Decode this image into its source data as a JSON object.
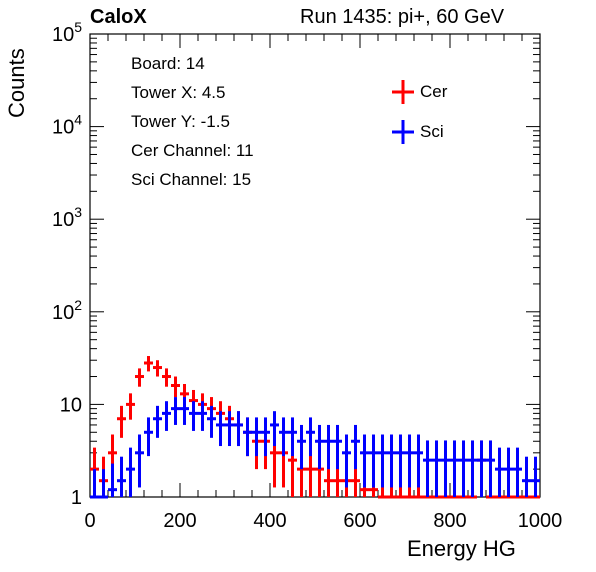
{
  "header": {
    "left_title": "CaloX",
    "right_title": "Run 1435: pi+, 60 GeV"
  },
  "info_box": {
    "lines": [
      "Board: 14",
      "Tower X: 4.5",
      "Tower Y: -1.5",
      "Cer Channel: 11",
      "Sci Channel: 15"
    ]
  },
  "colors": {
    "cer": "#ff0000",
    "sci": "#0000ff"
  },
  "chart_data": {
    "type": "histogram",
    "xlabel": "Energy HG",
    "ylabel": "Counts",
    "xlim": [
      0,
      1000
    ],
    "ylim": [
      1,
      100000
    ],
    "yscale": "log",
    "x_ticks": [
      0,
      200,
      400,
      600,
      800,
      1000
    ],
    "y_ticks": [
      1,
      10,
      100,
      1000,
      10000,
      100000
    ],
    "legend_position": "top-right",
    "bin_width": 20,
    "series": [
      {
        "name": "Cer",
        "x": [
          10,
          30,
          50,
          70,
          90,
          110,
          130,
          150,
          170,
          190,
          210,
          230,
          250,
          270,
          290,
          310,
          330,
          350,
          370,
          390,
          410,
          430,
          450,
          470,
          490,
          510,
          530,
          550,
          570,
          590,
          610,
          630,
          650,
          670,
          690,
          710,
          730,
          750,
          770,
          790,
          810,
          830,
          850,
          870,
          890,
          910,
          930,
          950,
          970,
          990
        ],
        "values": [
          2,
          1.5,
          3,
          7,
          10,
          20,
          28,
          25,
          20,
          16,
          13,
          11,
          10,
          9,
          8,
          7,
          6,
          5,
          4,
          4,
          3,
          3,
          2.5,
          2,
          2,
          2,
          1.5,
          1.5,
          1.5,
          1.5,
          1.2,
          1.2,
          1,
          1,
          1,
          1,
          1,
          1,
          1,
          1,
          1,
          1,
          1,
          2.5,
          1,
          1,
          1,
          1,
          1,
          1
        ]
      },
      {
        "name": "Sci",
        "x": [
          10,
          30,
          50,
          70,
          90,
          110,
          130,
          150,
          170,
          190,
          210,
          230,
          250,
          270,
          290,
          310,
          330,
          350,
          370,
          390,
          410,
          430,
          450,
          470,
          490,
          510,
          530,
          550,
          570,
          590,
          610,
          630,
          650,
          670,
          690,
          710,
          730,
          750,
          770,
          790,
          810,
          830,
          850,
          870,
          890,
          910,
          930,
          950,
          970,
          990
        ],
        "values": [
          1,
          1,
          1.2,
          1.5,
          2,
          3,
          5,
          7,
          8,
          9,
          9,
          8,
          8,
          7,
          6,
          6,
          6,
          5,
          5,
          5,
          6,
          5,
          5,
          4,
          5,
          4,
          4,
          4,
          3,
          4,
          3,
          3,
          3,
          3,
          3,
          3,
          3,
          2.5,
          2.5,
          2.5,
          2.5,
          2.5,
          2.5,
          2.5,
          2.5,
          2,
          2,
          2,
          1.5,
          1.5
        ]
      }
    ]
  }
}
